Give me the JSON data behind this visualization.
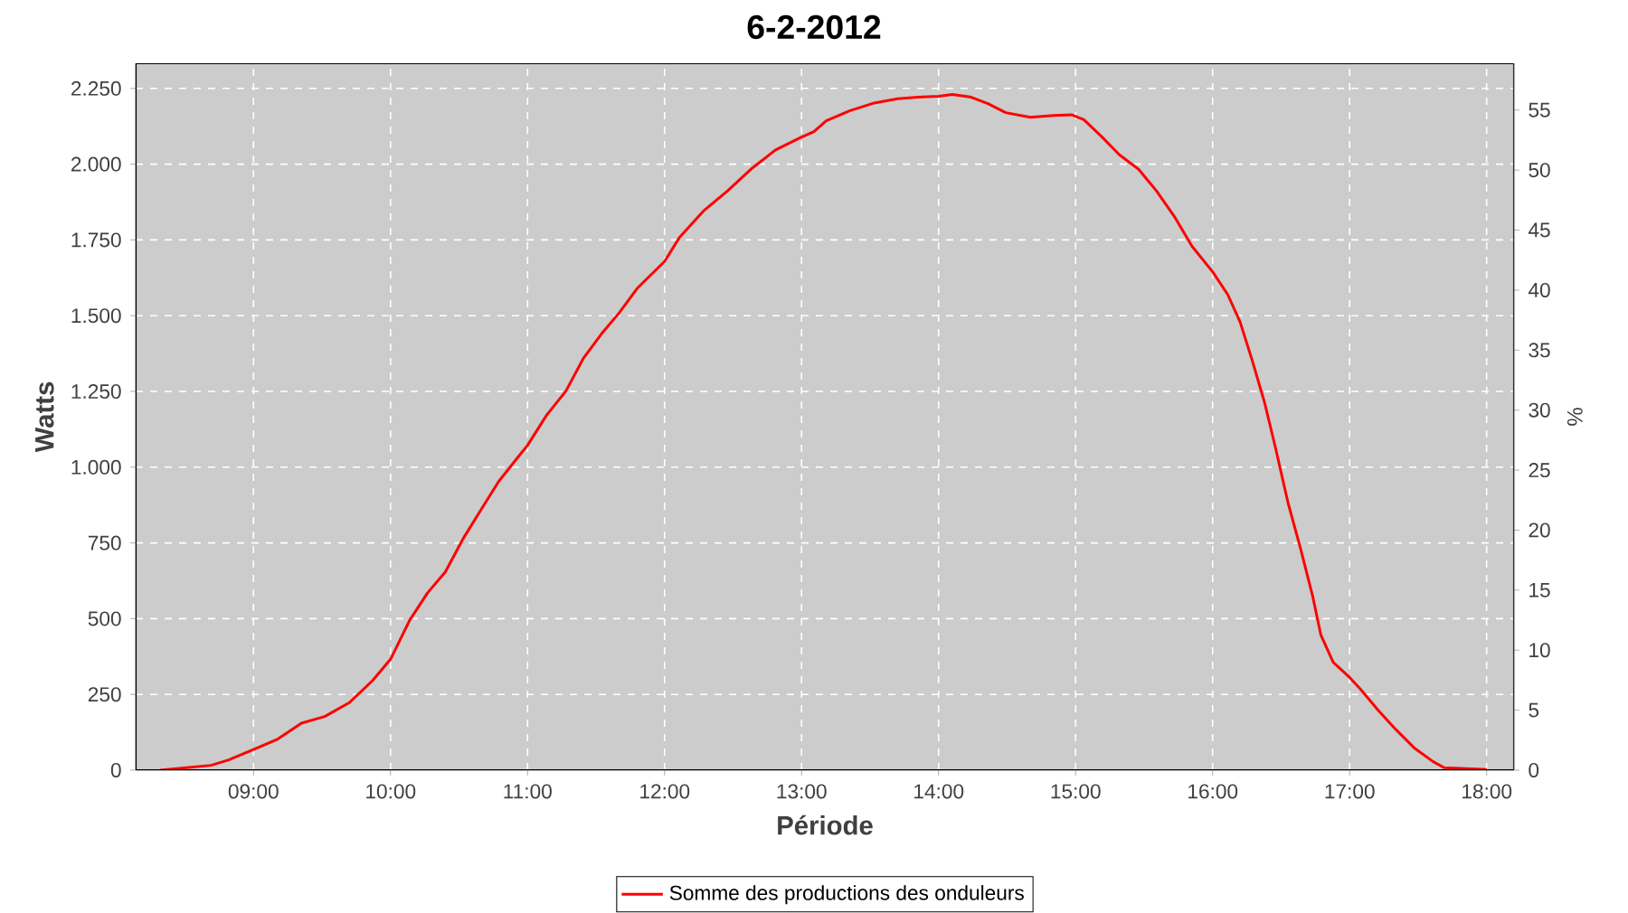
{
  "chart_data": {
    "type": "line",
    "title": "6-2-2012",
    "xlabel": "Période",
    "ylabel": "Watts",
    "y2label": "%",
    "xlim": [
      8.14,
      18.2
    ],
    "xticks": [
      {
        "value": 9,
        "label": "09:00"
      },
      {
        "value": 10,
        "label": "10:00"
      },
      {
        "value": 11,
        "label": "11:00"
      },
      {
        "value": 12,
        "label": "12:00"
      },
      {
        "value": 13,
        "label": "13:00"
      },
      {
        "value": 14,
        "label": "14:00"
      },
      {
        "value": 15,
        "label": "15:00"
      },
      {
        "value": 16,
        "label": "16:00"
      },
      {
        "value": 17,
        "label": "17:00"
      },
      {
        "value": 18,
        "label": "18:00"
      }
    ],
    "ylim": [
      0,
      2333
    ],
    "yticks": [
      0,
      250,
      500,
      750,
      {
        "value": 1000,
        "label": "1.000"
      },
      {
        "value": 1250,
        "label": "1.250"
      },
      {
        "value": 1500,
        "label": "1.500"
      },
      {
        "value": 1750,
        "label": "1.750"
      },
      {
        "value": 2000,
        "label": "2.000"
      },
      {
        "value": 2250,
        "label": "2.250"
      }
    ],
    "y2lim": [
      0,
      58.9
    ],
    "y2ticks": [
      0,
      5,
      10,
      15,
      20,
      25,
      30,
      35,
      40,
      45,
      50,
      55
    ],
    "grid": true,
    "legend": "bottom",
    "marker": "none",
    "line_style": "solid",
    "series": [
      {
        "name": "Somme des productions des onduleurs",
        "color": "#ff0000",
        "x": [
          8.32,
          8.51,
          8.69,
          8.82,
          9.0,
          9.17,
          9.35,
          9.52,
          9.7,
          9.87,
          10.0,
          10.14,
          10.27,
          10.4,
          10.53,
          10.66,
          10.79,
          10.93,
          11.0,
          11.14,
          11.28,
          11.41,
          11.54,
          11.67,
          11.8,
          12.0,
          12.11,
          12.29,
          12.46,
          12.64,
          12.81,
          12.99,
          13.09,
          13.18,
          13.35,
          13.53,
          13.7,
          13.88,
          14.0,
          14.1,
          14.23,
          14.36,
          14.49,
          14.67,
          14.84,
          14.97,
          15.06,
          15.19,
          15.32,
          15.46,
          15.59,
          15.72,
          15.85,
          16.0,
          16.11,
          16.2,
          16.29,
          16.38,
          16.46,
          16.55,
          16.64,
          16.73,
          16.79,
          16.88,
          17.0,
          17.08,
          17.21,
          17.34,
          17.47,
          17.61,
          17.69,
          18.0
        ],
        "values": [
          0,
          8,
          16,
          34,
          68,
          101,
          155,
          177,
          223,
          296,
          366,
          495,
          585,
          654,
          764,
          859,
          953,
          1033,
          1072,
          1172,
          1251,
          1361,
          1440,
          1510,
          1590,
          1679,
          1759,
          1848,
          1912,
          1987,
          2047,
          2087,
          2107,
          2143,
          2176,
          2202,
          2216,
          2222,
          2224,
          2230,
          2222,
          2200,
          2170,
          2155,
          2161,
          2163,
          2147,
          2091,
          2031,
          1983,
          1912,
          1828,
          1729,
          1645,
          1570,
          1480,
          1351,
          1212,
          1062,
          883,
          734,
          575,
          446,
          356,
          306,
          267,
          197,
          133,
          74,
          28,
          8,
          2
        ]
      }
    ]
  }
}
